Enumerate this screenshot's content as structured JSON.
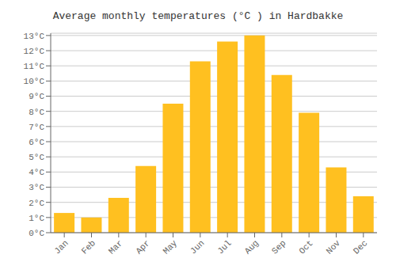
{
  "chart_data": {
    "type": "bar",
    "title": "Average monthly temperatures (°C ) in Hardbakke",
    "categories": [
      "Jan",
      "Feb",
      "Mar",
      "Apr",
      "May",
      "Jun",
      "Jul",
      "Aug",
      "Sep",
      "Oct",
      "Nov",
      "Dec"
    ],
    "values": [
      1.3,
      1.0,
      2.3,
      4.4,
      8.5,
      11.3,
      12.6,
      13.0,
      10.4,
      7.9,
      4.3,
      2.4
    ],
    "color": "#FFC020",
    "ylim": [
      0,
      13.15
    ],
    "yticks": [
      {
        "value": 0,
        "label": "0°C"
      },
      {
        "value": 1,
        "label": "1°C"
      },
      {
        "value": 2,
        "label": "2°C"
      },
      {
        "value": 3,
        "label": "3°C"
      },
      {
        "value": 4,
        "label": "4°C"
      },
      {
        "value": 5,
        "label": "5°C"
      },
      {
        "value": 6,
        "label": "6°C"
      },
      {
        "value": 7,
        "label": "7°C"
      },
      {
        "value": 8,
        "label": "8°C"
      },
      {
        "value": 9,
        "label": "9°C"
      },
      {
        "value": 10,
        "label": "10°C"
      },
      {
        "value": 11,
        "label": "11°C"
      },
      {
        "value": 12,
        "label": "12°C"
      },
      {
        "value": 13,
        "label": "13°C"
      }
    ],
    "grid": true
  }
}
